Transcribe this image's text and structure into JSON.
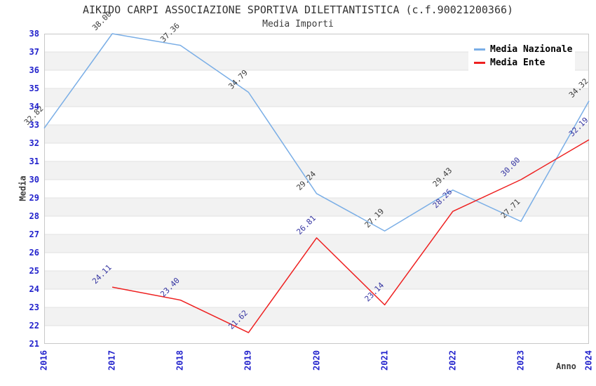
{
  "chart_data": {
    "type": "line",
    "title": "AIKIDO CARPI ASSOCIAZIONE SPORTIVA DILETTANTISTICA (c.f.90021200366)",
    "subtitle": "Media Importi",
    "xlabel": "Anno",
    "ylabel": "Media",
    "categories": [
      "2016",
      "2017",
      "2018",
      "2019",
      "2020",
      "2021",
      "2022",
      "2023",
      "2024"
    ],
    "ylim": [
      21,
      38
    ],
    "ytick_step": 1,
    "grid": "horizontal-unit-bands",
    "legend_position": "top-right",
    "series": [
      {
        "name": "Media Nazionale",
        "color": "#7aaee6",
        "label_color": "#3c3c3c",
        "values": [
          32.82,
          38.0,
          37.36,
          34.79,
          29.24,
          27.19,
          29.43,
          27.71,
          34.32
        ]
      },
      {
        "name": "Media Ente",
        "color": "#ee2020",
        "label_color": "#3333a0",
        "values": [
          null,
          24.11,
          23.4,
          21.62,
          26.81,
          23.14,
          28.26,
          30.0,
          32.19
        ]
      }
    ],
    "colors": {
      "tick_label": "#2222cc",
      "axis_title": "#3c3c3c",
      "title": "#333333",
      "band_fill": "#f2f2f2",
      "gridline": "#e2e2e2",
      "plot_border": "#c8c8c8",
      "plot_background": "#ffffff"
    }
  }
}
